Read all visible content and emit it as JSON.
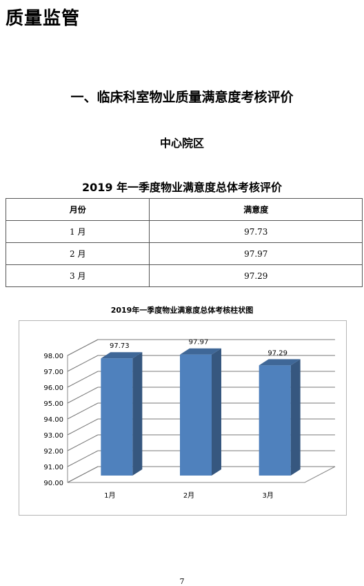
{
  "document": {
    "page_title": "质量监管",
    "section_heading": "一、临床科室物业质量满意度考核评价",
    "campus": "中心院区",
    "table_title": "2019 年一季度物业满意度总体考核评价",
    "page_number": "7"
  },
  "table": {
    "headers": [
      "月份",
      "满意度"
    ],
    "rows": [
      [
        "1 月",
        "97.73"
      ],
      [
        "2 月",
        "97.97"
      ],
      [
        "3 月",
        "97.29"
      ]
    ]
  },
  "chart_data": {
    "type": "bar",
    "title": "2019年一季度物业满意度总体考核柱状图",
    "categories": [
      "1月",
      "2月",
      "3月"
    ],
    "values": [
      97.73,
      97.97,
      97.29
    ],
    "data_labels": [
      "97.73",
      "97.97",
      "97.29"
    ],
    "ylim": [
      90,
      98
    ],
    "yticks": [
      "90.00",
      "91.00",
      "92.00",
      "93.00",
      "94.00",
      "95.00",
      "96.00",
      "97.00",
      "98.00"
    ],
    "xlabel": "",
    "ylabel": "",
    "grid": true,
    "style": "3d-column",
    "colors": {
      "bar_front": "#4f81bd",
      "bar_side": "#36577f",
      "bar_top": "#3f6797"
    }
  }
}
